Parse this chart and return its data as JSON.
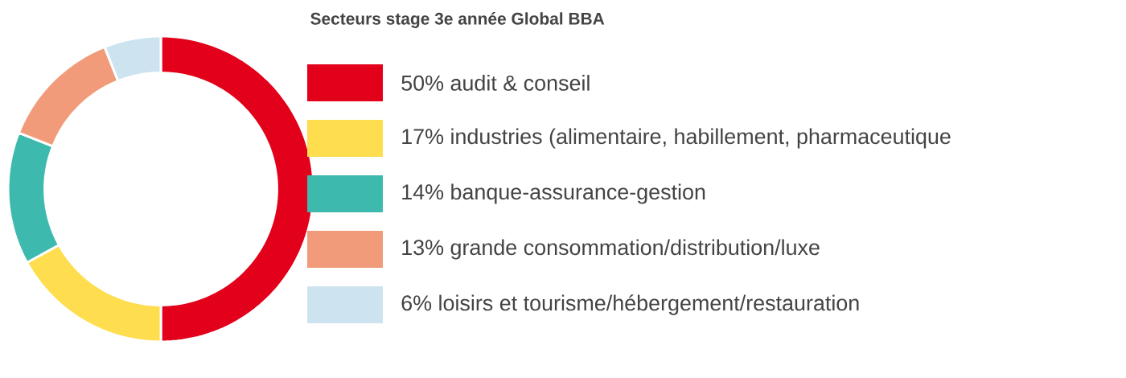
{
  "chart_data": {
    "type": "donut",
    "title": "Secteurs stage 3e année Global BBA",
    "categories": [
      "50%  audit & conseil",
      "17%  industries (alimentaire, habillement, pharmaceutique",
      "14%  banque-assurance-gestion",
      "13%  grande consommation/distribution/luxe",
      "6%  loisirs et tourisme/hébergement/restauration"
    ],
    "values": [
      50,
      17,
      14,
      13,
      6
    ],
    "colors": [
      "#e2001a",
      "#fedd4f",
      "#3db9ad",
      "#f19b7b",
      "#cde4f0"
    ],
    "legend": "right"
  }
}
